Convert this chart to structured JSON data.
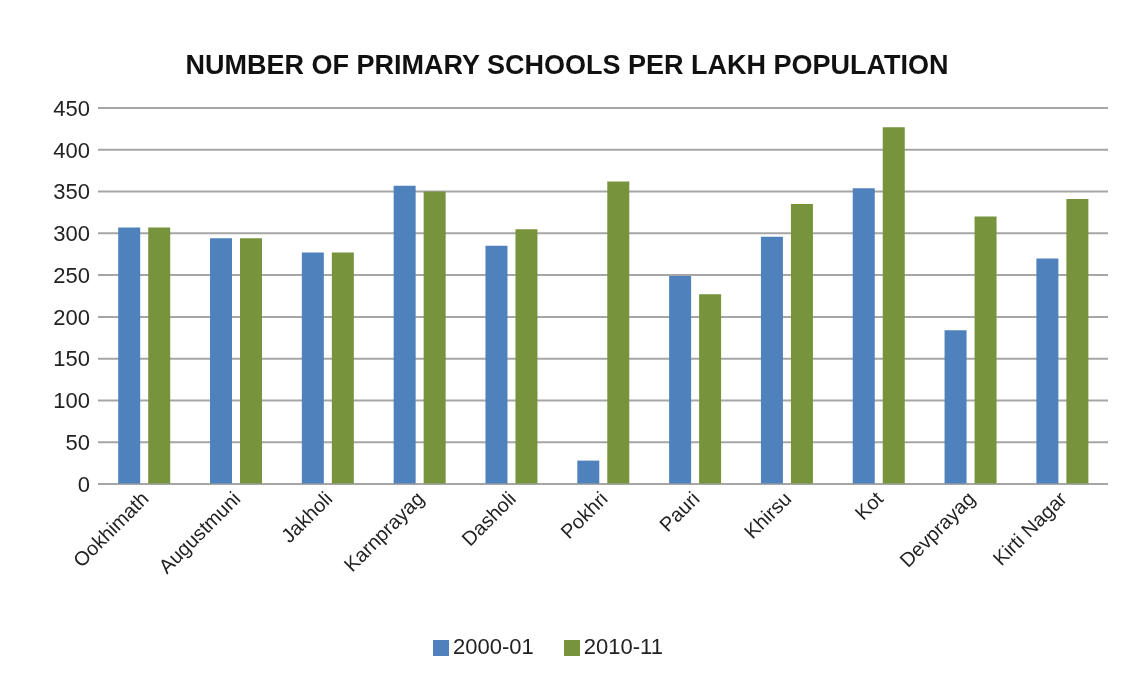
{
  "chart_data": {
    "type": "bar",
    "title": "NUMBER OF PRIMARY SCHOOLS PER LAKH POPULATION",
    "categories": [
      "Ookhimath",
      "Augustmuni",
      "Jakholi",
      "Karnprayag",
      "Dasholi",
      "Pokhri",
      "Pauri",
      "Khirsu",
      "Kot",
      "Devprayag",
      "Kirti Nagar"
    ],
    "series": [
      {
        "name": "2000-01",
        "color": "#4f81bd",
        "values": [
          307,
          294,
          277,
          357,
          285,
          28,
          249,
          296,
          354,
          184,
          270
        ]
      },
      {
        "name": "2010-11",
        "color": "#77933c",
        "values": [
          307,
          294,
          277,
          350,
          305,
          362,
          227,
          335,
          427,
          320,
          341
        ]
      }
    ],
    "ylim": [
      0,
      450
    ],
    "yticks": [
      0,
      50,
      100,
      150,
      200,
      250,
      300,
      350,
      400,
      450
    ],
    "grid": "y",
    "legend": "bottom"
  }
}
